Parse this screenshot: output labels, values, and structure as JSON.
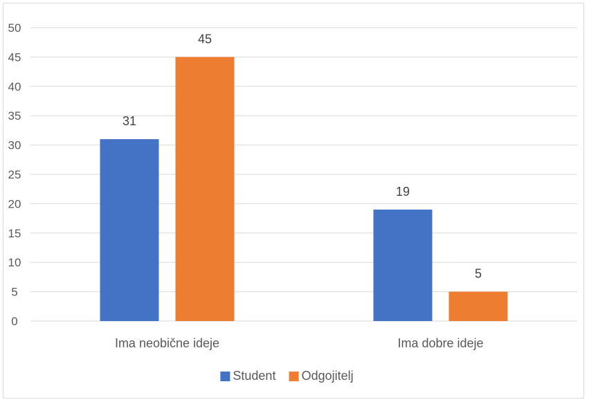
{
  "chart_data": {
    "type": "bar",
    "title": "",
    "xlabel": "",
    "ylabel": "",
    "categories": [
      "Ima neobične ideje",
      "Ima dobre ideje"
    ],
    "series": [
      {
        "name": "Student",
        "values": [
          31,
          19
        ],
        "color": "#4472C4"
      },
      {
        "name": "Odgojitelj",
        "values": [
          45,
          5
        ],
        "color": "#ED7D31"
      }
    ],
    "ylim": [
      0,
      50
    ],
    "yticks": [
      0,
      5,
      10,
      15,
      20,
      25,
      30,
      35,
      40,
      45,
      50
    ],
    "grid": true,
    "legend_position": "bottom",
    "gridline_color": "#d9d9d9"
  }
}
